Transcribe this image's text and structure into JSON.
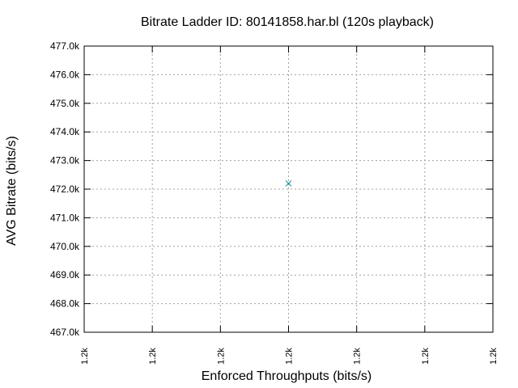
{
  "chart_data": {
    "type": "scatter",
    "title": "Bitrate Ladder ID: 80141858.har.bl (120s playback)",
    "xlabel": "Enforced Throughputs (bits/s)",
    "ylabel": "AVG Bitrate (bits/s)",
    "x_tick_labels": [
      "1.2k",
      "1.2k",
      "1.2k",
      "1.2k",
      "1.2k",
      "1.2k",
      "1.2k"
    ],
    "y_ticks": [
      467000,
      468000,
      469000,
      470000,
      471000,
      472000,
      473000,
      474000,
      475000,
      476000,
      477000
    ],
    "y_tick_labels": [
      "467.0k",
      "468.0k",
      "469.0k",
      "470.0k",
      "471.0k",
      "472.0k",
      "473.0k",
      "474.0k",
      "475.0k",
      "476.0k",
      "477.0k"
    ],
    "ylim": [
      467000,
      477000
    ],
    "xlim": [
      1197,
      1203
    ],
    "x_ticks": [
      1197,
      1198,
      1199,
      1200,
      1201,
      1202,
      1203
    ],
    "grid": true,
    "series": [
      {
        "color": "#008b8b",
        "marker": "x",
        "points": [
          {
            "x": 1200,
            "y": 472200
          }
        ]
      }
    ]
  }
}
